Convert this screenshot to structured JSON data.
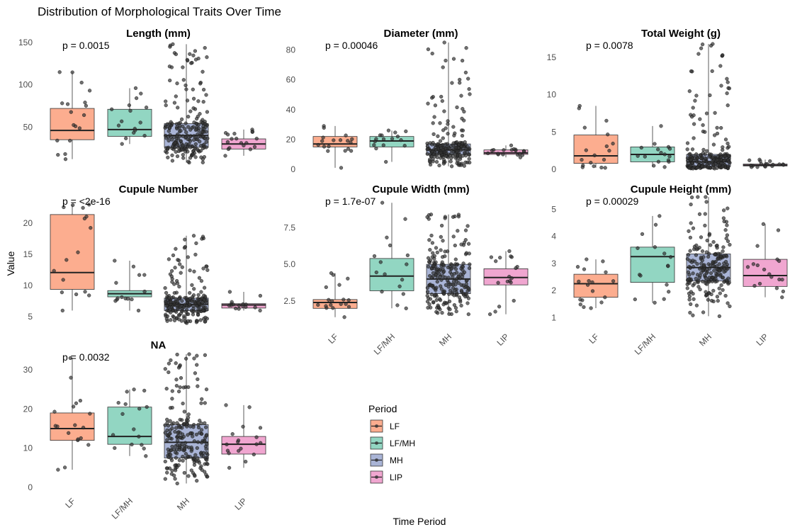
{
  "title": "Distribution of Morphological Traits Over Time",
  "xlabel": "Time Period",
  "ylabel": "Value",
  "legend": {
    "title": "Period",
    "position": "bottom-center",
    "items": [
      "LF",
      "LF/MH",
      "MH",
      "LIP"
    ]
  },
  "colors": {
    "LF": "#fcad8f",
    "LF/MH": "#92d6c2",
    "MH": "#a9b4d6",
    "LIP": "#f0a6d0"
  },
  "chart_data": [
    {
      "type": "box",
      "facet": "Length (mm)",
      "p_value": "p = 0.0015",
      "ylim": [
        0,
        150
      ],
      "yticks": [
        50,
        100,
        150
      ],
      "categories": [
        "LF",
        "LF/MH",
        "MH",
        "LIP"
      ],
      "boxes": [
        {
          "q1": 35,
          "median": 46,
          "q3": 72,
          "wmin": 12,
          "wmax": 115,
          "n": 18
        },
        {
          "q1": 39,
          "median": 47,
          "q3": 71,
          "wmin": 30,
          "wmax": 96,
          "n": 16
        },
        {
          "q1": 26,
          "median": 40,
          "q3": 54,
          "wmin": 8,
          "wmax": 148,
          "n": 220
        },
        {
          "q1": 24,
          "median": 30,
          "q3": 36,
          "wmin": 16,
          "wmax": 47,
          "n": 18
        }
      ]
    },
    {
      "type": "box",
      "facet": "Diameter (mm)",
      "p_value": "p = 0.00046",
      "ylim": [
        0,
        85
      ],
      "yticks": [
        0,
        20,
        40,
        60,
        80
      ],
      "categories": [
        "LF",
        "LF/MH",
        "MH",
        "LIP"
      ],
      "boxes": [
        {
          "q1": 15,
          "median": 17,
          "q3": 22,
          "wmin": 1,
          "wmax": 29,
          "n": 18
        },
        {
          "q1": 15,
          "median": 19,
          "q3": 22,
          "wmin": 5,
          "wmax": 26,
          "n": 16
        },
        {
          "q1": 10,
          "median": 13,
          "q3": 17,
          "wmin": 2,
          "wmax": 85,
          "n": 220
        },
        {
          "q1": 10,
          "median": 11,
          "q3": 13,
          "wmin": 8,
          "wmax": 16,
          "n": 18
        }
      ]
    },
    {
      "type": "box",
      "facet": "Total Weight (g)",
      "p_value": "p = 0.0078",
      "ylim": [
        0,
        17
      ],
      "yticks": [
        0,
        5,
        10,
        15
      ],
      "categories": [
        "LF",
        "LF/MH",
        "MH",
        "LIP"
      ],
      "boxes": [
        {
          "q1": 0.8,
          "median": 1.8,
          "q3": 4.6,
          "wmin": 0.2,
          "wmax": 8.5,
          "n": 18
        },
        {
          "q1": 1.0,
          "median": 2.0,
          "q3": 3.0,
          "wmin": 0.3,
          "wmax": 5.8,
          "n": 16
        },
        {
          "q1": 0.4,
          "median": 1.0,
          "q3": 2.0,
          "wmin": 0.1,
          "wmax": 16.8,
          "n": 220
        },
        {
          "q1": 0.45,
          "median": 0.55,
          "q3": 0.7,
          "wmin": 0.3,
          "wmax": 1.3,
          "n": 18
        }
      ]
    },
    {
      "type": "box",
      "facet": "Cupule Number",
      "p_value": "p = <2e-16",
      "ylim": [
        4,
        24
      ],
      "yticks": [
        5,
        10,
        15,
        20
      ],
      "categories": [
        "LF",
        "LF/MH",
        "MH",
        "LIP"
      ],
      "boxes": [
        {
          "q1": 9.4,
          "median": 12.1,
          "q3": 21.4,
          "wmin": 6,
          "wmax": 23,
          "n": 16
        },
        {
          "q1": 8.2,
          "median": 8.7,
          "q3": 9.2,
          "wmin": 6,
          "wmax": 14,
          "n": 14
        },
        {
          "q1": 6,
          "median": 7,
          "q3": 8,
          "wmin": 4,
          "wmax": 18,
          "n": 220
        },
        {
          "q1": 6.4,
          "median": 6.9,
          "q3": 7.1,
          "wmin": 6,
          "wmax": 9,
          "n": 16
        }
      ]
    },
    {
      "type": "box",
      "facet": "Cupule Width (mm)",
      "p_value": "p = 1.7e-07",
      "ylim": [
        1,
        9.5
      ],
      "yticks": [
        2.5,
        5.0,
        7.5
      ],
      "ytick_labels": [
        "2.5",
        "5.0",
        "7.5"
      ],
      "categories": [
        "LF",
        "LF/MH",
        "MH",
        "LIP"
      ],
      "boxes": [
        {
          "q1": 2.0,
          "median": 2.4,
          "q3": 2.6,
          "wmin": 1.4,
          "wmax": 4.4,
          "n": 18
        },
        {
          "q1": 3.2,
          "median": 4.2,
          "q3": 5.4,
          "wmin": 2.0,
          "wmax": 9.2,
          "n": 16
        },
        {
          "q1": 3.0,
          "median": 4.0,
          "q3": 5.0,
          "wmin": 1.6,
          "wmax": 8.4,
          "n": 220
        },
        {
          "q1": 3.6,
          "median": 4.1,
          "q3": 4.7,
          "wmin": 1.6,
          "wmax": 5.9,
          "n": 18
        }
      ]
    },
    {
      "type": "box",
      "facet": "Cupule Height (mm)",
      "p_value": "p = 0.00029",
      "ylim": [
        0.8,
        5.4
      ],
      "yticks": [
        1,
        2,
        3,
        4,
        5
      ],
      "categories": [
        "LF",
        "LF/MH",
        "MH",
        "LIP"
      ],
      "boxes": [
        {
          "q1": 1.75,
          "median": 2.25,
          "q3": 2.6,
          "wmin": 1.35,
          "wmax": 3.15,
          "n": 18
        },
        {
          "q1": 2.3,
          "median": 3.25,
          "q3": 3.6,
          "wmin": 1.55,
          "wmax": 4.75,
          "n": 16
        },
        {
          "q1": 2.35,
          "median": 2.85,
          "q3": 3.35,
          "wmin": 1.05,
          "wmax": 5.45,
          "n": 220
        },
        {
          "q1": 2.15,
          "median": 2.55,
          "q3": 3.15,
          "wmin": 1.75,
          "wmax": 4.45,
          "n": 18
        }
      ]
    },
    {
      "type": "box",
      "facet": "NA",
      "p_value": "p = 0.0032",
      "ylim": [
        0,
        34
      ],
      "yticks": [
        0,
        10,
        20,
        30
      ],
      "categories": [
        "LF",
        "LF/MH",
        "MH",
        "LIP"
      ],
      "boxes": [
        {
          "q1": 12,
          "median": 15,
          "q3": 19,
          "wmin": 4.5,
          "wmax": 33,
          "n": 18
        },
        {
          "q1": 11,
          "median": 13,
          "q3": 20.5,
          "wmin": 8,
          "wmax": 25,
          "n": 16
        },
        {
          "q1": 7.5,
          "median": 11.5,
          "q3": 16,
          "wmin": 1,
          "wmax": 34,
          "n": 220
        },
        {
          "q1": 8.5,
          "median": 11,
          "q3": 13,
          "wmin": 5,
          "wmax": 21,
          "n": 18
        }
      ]
    }
  ]
}
